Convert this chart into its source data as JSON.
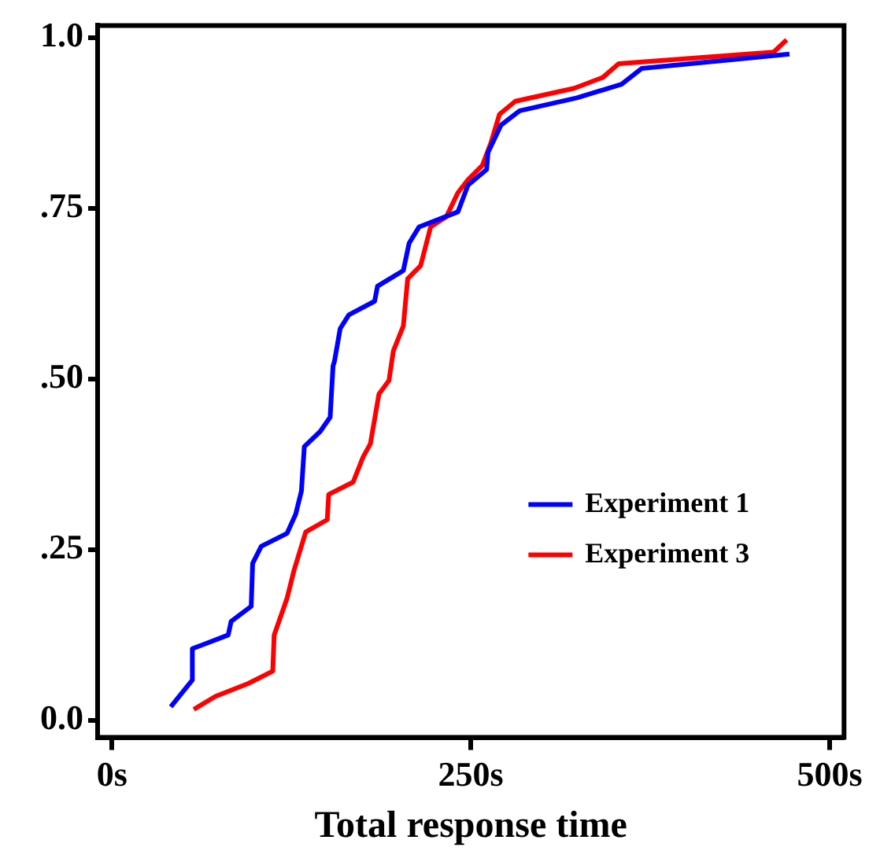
{
  "chart_data": {
    "type": "line",
    "xlabel": "Total response time",
    "xlim": [
      -10,
      510
    ],
    "ylim": [
      -0.025,
      1.018
    ],
    "xticks": [
      {
        "value": 0,
        "label": "0s"
      },
      {
        "value": 250,
        "label": "250s"
      },
      {
        "value": 500,
        "label": "500s"
      }
    ],
    "yticks": [
      {
        "value": 0,
        "label": "0.0"
      },
      {
        "value": 0.25,
        "label": ".25"
      },
      {
        "value": 0.5,
        "label": ".50"
      },
      {
        "value": 0.75,
        "label": ".75"
      },
      {
        "value": 1,
        "label": "1.0"
      }
    ],
    "grid": false,
    "legend": "bottom right",
    "marker": "none",
    "line_style": "solid",
    "series": [
      {
        "name": "Experiment 1",
        "color": "#0000ff",
        "x": [
          41,
          56,
          56,
          81,
          83,
          97,
          98,
          104,
          122,
          128,
          132,
          134,
          145,
          152,
          154,
          155,
          159,
          165,
          183,
          185,
          203,
          207,
          214,
          241,
          248,
          261,
          262,
          271,
          284,
          324,
          355,
          369,
          472
        ],
        "values": [
          0.02,
          0.059,
          0.105,
          0.125,
          0.145,
          0.167,
          0.23,
          0.255,
          0.274,
          0.302,
          0.336,
          0.401,
          0.423,
          0.444,
          0.519,
          0.526,
          0.574,
          0.594,
          0.614,
          0.636,
          0.659,
          0.699,
          0.723,
          0.745,
          0.784,
          0.807,
          0.832,
          0.872,
          0.893,
          0.912,
          0.932,
          0.955,
          0.976
        ]
      },
      {
        "name": "Experiment 3",
        "color": "#ff0000",
        "x": [
          57,
          72,
          95,
          112,
          113,
          122,
          127,
          135,
          150,
          151,
          168,
          175,
          180,
          186,
          193,
          196,
          203,
          206,
          215,
          222,
          233,
          241,
          248,
          258,
          264,
          270,
          281,
          322,
          342,
          353,
          461,
          470
        ],
        "values": [
          0.016,
          0.035,
          0.054,
          0.072,
          0.125,
          0.179,
          0.221,
          0.276,
          0.294,
          0.331,
          0.349,
          0.386,
          0.405,
          0.478,
          0.498,
          0.541,
          0.578,
          0.647,
          0.666,
          0.723,
          0.738,
          0.773,
          0.792,
          0.813,
          0.846,
          0.888,
          0.907,
          0.926,
          0.942,
          0.962,
          0.979,
          0.997
        ]
      }
    ]
  }
}
